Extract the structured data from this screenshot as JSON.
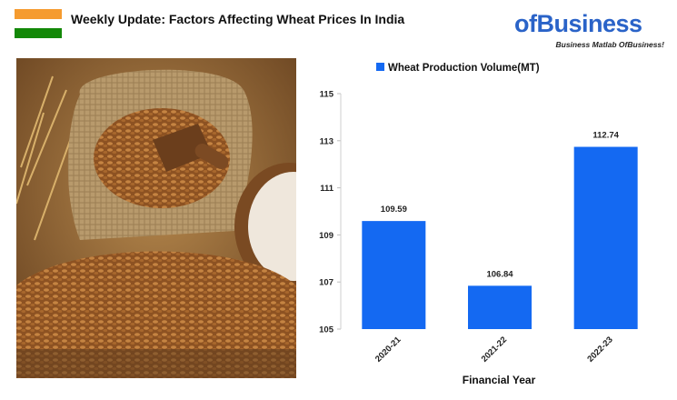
{
  "header": {
    "title": "Weekly Update: Factors Affecting Wheat Prices In India",
    "flag_colors": [
      "#f59b2f",
      "#ffffff",
      "#138808"
    ]
  },
  "logo": {
    "text": "ofBusiness",
    "tagline": "Business Matlab OfBusiness!",
    "color": "#2a63c8"
  },
  "photo": {
    "icon": "wheat-sack-photo"
  },
  "chart_data": {
    "type": "bar",
    "title": "",
    "legend": "Wheat Production Volume(MT)",
    "legend_position": "top-center",
    "categories": [
      "2020-21",
      "2021-22",
      "2022-23"
    ],
    "values": [
      109.59,
      106.84,
      112.74
    ],
    "value_labels": [
      "109.59",
      "106.84",
      "112.74"
    ],
    "xlabel": "Financial Year",
    "ylabel": "",
    "ylim": [
      105,
      115
    ],
    "yticks": [
      105,
      107,
      109,
      111,
      113,
      115
    ],
    "bar_color": "#1469f2",
    "grid": false
  }
}
